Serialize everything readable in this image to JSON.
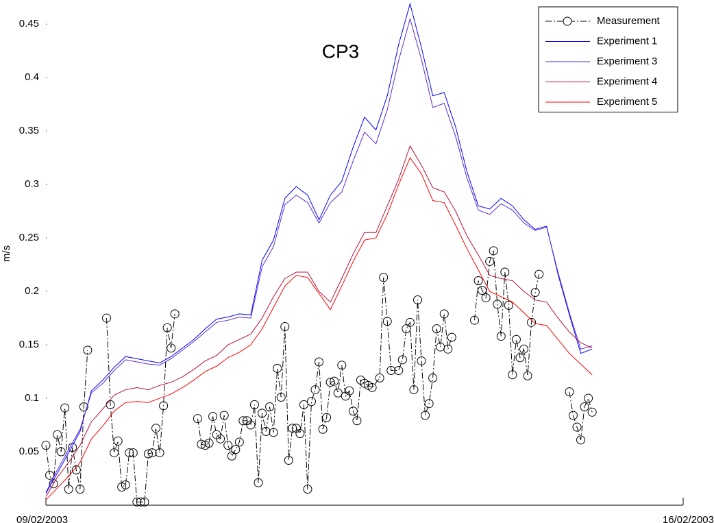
{
  "chart_data": {
    "type": "line",
    "title": "CP3",
    "y_label": "m/s",
    "xlim": [
      0,
      168
    ],
    "xticks": [
      {
        "value": 0,
        "label": "09/02/2003"
      },
      {
        "value": 168,
        "label": "16/02/2003"
      }
    ],
    "ylim": [
      0,
      0.47
    ],
    "yticks": [
      0.05,
      0.1,
      0.15,
      0.2,
      0.25,
      0.3,
      0.35,
      0.4,
      0.45
    ],
    "legend": "upper right",
    "series": [
      {
        "name": "Measurement",
        "color": "#000000",
        "marker": "circle",
        "linestyle": "dashdot",
        "x": [
          0,
          1,
          2,
          3,
          4,
          5,
          6,
          7,
          8,
          9,
          10,
          11,
          12,
          16,
          17,
          18,
          19,
          20,
          21,
          22,
          23,
          24,
          25,
          26,
          27,
          28,
          29,
          30,
          31,
          32,
          33,
          34,
          35,
          40,
          41,
          42,
          43,
          44,
          45,
          46,
          47,
          48,
          49,
          50,
          51,
          52,
          53,
          54,
          55,
          56,
          57,
          58,
          59,
          60,
          61,
          62,
          63,
          64,
          65,
          66,
          67,
          68,
          69,
          70,
          71,
          72,
          73,
          74,
          75,
          76,
          77,
          78,
          79,
          80,
          81,
          82,
          83,
          84,
          85,
          86,
          88,
          89,
          90,
          91,
          93,
          94,
          95,
          96,
          97,
          98,
          99,
          100,
          101,
          102,
          103,
          104,
          105,
          106,
          107,
          108,
          113,
          114,
          115,
          116,
          117,
          118,
          119,
          120,
          121,
          122,
          123,
          124,
          125,
          126,
          127,
          128,
          129,
          130,
          131,
          138,
          139,
          140,
          141,
          142,
          143,
          144
        ],
        "values": [
          0.056,
          0.028,
          0.02,
          0.066,
          0.05,
          0.091,
          0.015,
          0.054,
          0.033,
          0.015,
          0.092,
          0.145,
          null,
          0.175,
          0.094,
          0.049,
          0.06,
          0.017,
          0.019,
          0.049,
          0.049,
          0.003,
          0.003,
          0.003,
          0.048,
          0.049,
          0.072,
          0.049,
          0.093,
          0.166,
          0.147,
          0.179,
          null,
          0.081,
          0.057,
          0.056,
          0.058,
          0.083,
          0.066,
          0.062,
          0.084,
          0.056,
          0.046,
          0.052,
          0.059,
          0.079,
          0.079,
          0.075,
          0.094,
          0.021,
          0.086,
          0.069,
          0.092,
          0.068,
          0.128,
          0.101,
          0.167,
          0.042,
          0.072,
          0.072,
          0.067,
          0.094,
          0.015,
          0.097,
          0.108,
          0.134,
          0.071,
          0.082,
          0.115,
          0.116,
          0.105,
          0.131,
          0.102,
          0.107,
          0.088,
          0.079,
          0.117,
          0.114,
          0.112,
          0.11,
          0.119,
          0.213,
          0.172,
          0.126,
          0.126,
          0.136,
          0.165,
          0.171,
          0.108,
          0.192,
          0.135,
          0.084,
          0.095,
          0.119,
          0.165,
          0.148,
          0.179,
          0.146,
          0.157,
          null,
          0.173,
          0.21,
          0.201,
          0.194,
          0.228,
          0.238,
          0.188,
          0.158,
          0.218,
          0.187,
          0.122,
          0.155,
          0.138,
          0.146,
          0.121,
          0.171,
          0.199,
          0.216,
          null,
          0.106,
          0.084,
          0.073,
          0.061,
          0.092,
          0.1,
          0.087
        ]
      },
      {
        "name": "Experiment 1",
        "color": "#0000ff",
        "x": [
          0,
          3,
          6,
          9,
          12,
          15,
          18,
          21,
          24,
          27,
          30,
          33,
          36,
          39,
          42,
          45,
          48,
          51,
          54,
          57,
          60,
          63,
          66,
          69,
          72,
          75,
          78,
          81,
          84,
          87,
          90,
          93,
          96,
          99,
          102,
          105,
          108,
          111,
          114,
          117,
          120,
          123,
          126,
          129,
          132,
          135,
          138,
          141,
          144
        ],
        "values": [
          0.011,
          0.03,
          0.049,
          0.069,
          0.107,
          0.117,
          0.129,
          0.139,
          0.137,
          0.135,
          0.133,
          0.139,
          0.147,
          0.155,
          0.165,
          0.174,
          0.176,
          0.179,
          0.178,
          0.229,
          0.248,
          0.287,
          0.298,
          0.29,
          0.267,
          0.29,
          0.303,
          0.335,
          0.363,
          0.351,
          0.383,
          0.431,
          0.469,
          0.428,
          0.383,
          0.386,
          0.354,
          0.312,
          0.28,
          0.277,
          0.287,
          0.28,
          0.267,
          0.258,
          0.261,
          0.216,
          0.178,
          0.142,
          0.146
        ]
      },
      {
        "name": "Experiment 3",
        "color": "#5a2ad6",
        "x": [
          0,
          3,
          6,
          9,
          12,
          15,
          18,
          21,
          24,
          27,
          30,
          33,
          36,
          39,
          42,
          45,
          48,
          51,
          54,
          57,
          60,
          63,
          66,
          69,
          72,
          75,
          78,
          81,
          84,
          87,
          90,
          93,
          96,
          99,
          102,
          105,
          108,
          111,
          114,
          117,
          120,
          123,
          126,
          129,
          132,
          135,
          138,
          141,
          144
        ],
        "values": [
          0.012,
          0.033,
          0.052,
          0.071,
          0.105,
          0.114,
          0.126,
          0.136,
          0.134,
          0.132,
          0.131,
          0.137,
          0.145,
          0.153,
          0.162,
          0.171,
          0.173,
          0.176,
          0.175,
          0.223,
          0.242,
          0.281,
          0.29,
          0.283,
          0.264,
          0.283,
          0.293,
          0.322,
          0.349,
          0.338,
          0.37,
          0.416,
          0.455,
          0.417,
          0.372,
          0.376,
          0.345,
          0.306,
          0.276,
          0.272,
          0.282,
          0.276,
          0.264,
          0.257,
          0.26,
          0.218,
          0.18,
          0.146,
          0.149
        ]
      },
      {
        "name": "Experiment 4",
        "color": "#b8103c",
        "x": [
          0,
          3,
          6,
          9,
          12,
          15,
          18,
          21,
          24,
          27,
          30,
          33,
          36,
          39,
          42,
          45,
          48,
          51,
          54,
          57,
          60,
          63,
          66,
          69,
          72,
          75,
          78,
          81,
          84,
          87,
          90,
          93,
          96,
          99,
          102,
          105,
          108,
          111,
          114,
          117,
          120,
          123,
          126,
          129,
          132,
          135,
          138,
          141,
          144
        ],
        "values": [
          0.008,
          0.026,
          0.04,
          0.056,
          0.078,
          0.09,
          0.103,
          0.108,
          0.11,
          0.108,
          0.112,
          0.115,
          0.12,
          0.127,
          0.135,
          0.14,
          0.15,
          0.155,
          0.16,
          0.175,
          0.195,
          0.212,
          0.218,
          0.218,
          0.2,
          0.19,
          0.212,
          0.235,
          0.255,
          0.255,
          0.28,
          0.305,
          0.336,
          0.318,
          0.297,
          0.293,
          0.275,
          0.252,
          0.234,
          0.215,
          0.212,
          0.21,
          0.2,
          0.192,
          0.19,
          0.175,
          0.162,
          0.152,
          0.147
        ]
      },
      {
        "name": "Experiment 5",
        "color": "#ff0000",
        "x": [
          0,
          3,
          6,
          9,
          12,
          15,
          18,
          21,
          24,
          27,
          30,
          33,
          36,
          39,
          42,
          45,
          48,
          51,
          54,
          57,
          60,
          63,
          66,
          69,
          72,
          75,
          78,
          81,
          84,
          87,
          90,
          93,
          96,
          99,
          102,
          105,
          108,
          111,
          114,
          117,
          120,
          123,
          126,
          129,
          132,
          135,
          138,
          141,
          144
        ],
        "values": [
          0.005,
          0.016,
          0.027,
          0.04,
          0.062,
          0.074,
          0.088,
          0.096,
          0.097,
          0.096,
          0.1,
          0.104,
          0.11,
          0.117,
          0.125,
          0.13,
          0.138,
          0.143,
          0.15,
          0.165,
          0.185,
          0.205,
          0.215,
          0.213,
          0.198,
          0.183,
          0.205,
          0.228,
          0.248,
          0.25,
          0.272,
          0.3,
          0.325,
          0.31,
          0.285,
          0.283,
          0.262,
          0.24,
          0.22,
          0.2,
          0.195,
          0.19,
          0.18,
          0.17,
          0.168,
          0.155,
          0.142,
          0.132,
          0.122
        ]
      }
    ]
  }
}
